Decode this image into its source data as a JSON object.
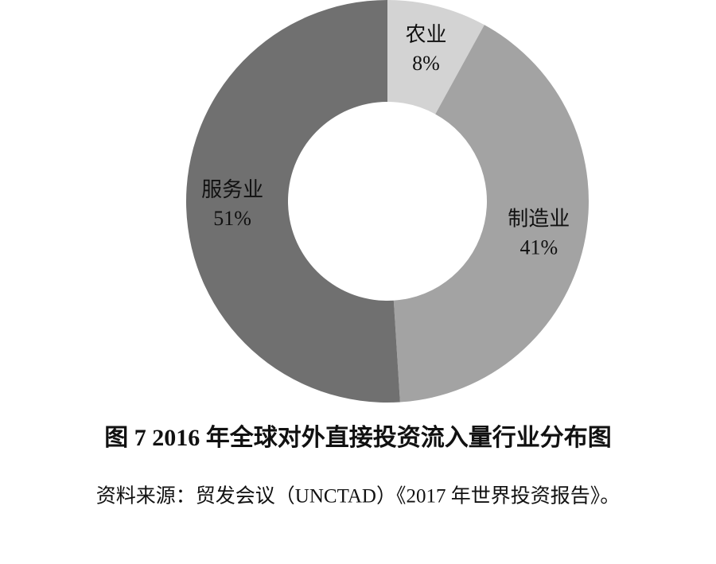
{
  "chart_data": {
    "type": "pie",
    "title": "图 7 2016 年全球对外直接投资流入量行业分布图",
    "source": "资料来源：贸发会议（UNCTAD）《2017 年世界投资报告》。",
    "categories": [
      "农业",
      "制造业",
      "服务业"
    ],
    "values": [
      8,
      41,
      51
    ],
    "value_labels": [
      "8%",
      "41%",
      "51%"
    ],
    "colors": [
      "#d3d3d3",
      "#a3a3a3",
      "#707070"
    ]
  }
}
